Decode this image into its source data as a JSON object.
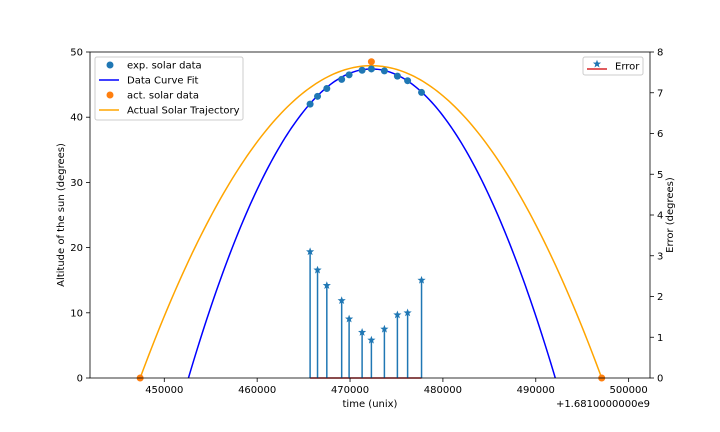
{
  "chart_data": {
    "type": "line",
    "xlabel": "time (unix)",
    "x_offset_label": "+1.6810000000e9",
    "x_ticks": [
      450000,
      460000,
      470000,
      480000,
      490000,
      500000
    ],
    "x_tick_labels": [
      "450000",
      "460000",
      "470000",
      "480000",
      "490000",
      "500000"
    ],
    "xlim": [
      442000,
      502300
    ],
    "left_axis": {
      "label": "Altitude of the sun (degrees)",
      "ylim": [
        0,
        50
      ],
      "ticks": [
        0,
        10,
        20,
        30,
        40,
        50
      ],
      "tick_labels": [
        "0",
        "10",
        "20",
        "30",
        "40",
        "50"
      ]
    },
    "right_axis": {
      "label": "Error (degrees)",
      "ylim": [
        0,
        8
      ],
      "ticks": [
        0,
        1,
        2,
        3,
        4,
        5,
        6,
        7,
        8
      ],
      "tick_labels": [
        "0",
        "1",
        "2",
        "3",
        "4",
        "5",
        "6",
        "7",
        "8"
      ]
    },
    "series": [
      {
        "name": "exp. solar data",
        "kind": "scatter",
        "axis": "left",
        "color": "#1f77b4",
        "x": [
          465700,
          466500,
          467500,
          469100,
          469900,
          471300,
          472300,
          473700,
          475100,
          476200,
          477700
        ],
        "y": [
          42.0,
          43.2,
          44.4,
          45.8,
          46.5,
          47.2,
          47.4,
          47.1,
          46.3,
          45.6,
          43.8
        ]
      },
      {
        "name": "Data Curve Fit",
        "kind": "line",
        "axis": "left",
        "color": "#0000ff",
        "peak_x": 472300,
        "peak_y": 47.4,
        "x": [
          452600,
          454000,
          456000,
          458000,
          460000,
          462000,
          464000,
          466000,
          468000,
          470000,
          472300,
          474000,
          476000,
          478000,
          480000,
          482000,
          484000,
          486000,
          488000,
          490000,
          492100
        ],
        "y": [
          0.0,
          7.0,
          15.5,
          23.0,
          29.5,
          35.0,
          39.5,
          43.0,
          45.4,
          46.9,
          47.4,
          47.2,
          46.0,
          43.7,
          40.2,
          35.5,
          29.6,
          22.5,
          14.3,
          6.0,
          0.0
        ]
      },
      {
        "name": "act. solar data",
        "kind": "scatter",
        "axis": "left",
        "color": "#ff7f0e",
        "x": [
          447400,
          472300,
          497100
        ],
        "y": [
          0.0,
          48.5,
          0.0
        ]
      },
      {
        "name": "Actual Solar Trajectory",
        "kind": "line",
        "axis": "left",
        "color": "#ffa500",
        "peak_x": 472300,
        "peak_y": 47.9,
        "x": [
          447400,
          450000,
          452500,
          455000,
          457500,
          460000,
          462500,
          465000,
          467500,
          470000,
          472300,
          474500,
          477000,
          479500,
          482000,
          484500,
          487000,
          489500,
          492000,
          494500,
          497100
        ],
        "y": [
          0.0,
          8.5,
          16.0,
          22.8,
          28.9,
          34.0,
          38.4,
          42.0,
          44.8,
          46.8,
          47.9,
          47.6,
          46.4,
          44.3,
          41.2,
          37.2,
          32.2,
          26.3,
          19.5,
          11.7,
          0.0
        ]
      },
      {
        "name": "Error",
        "kind": "stem",
        "axis": "right",
        "color": "#1f77b4",
        "baseline_color": "#d62728",
        "x": [
          465700,
          466500,
          467500,
          469100,
          469900,
          471300,
          472300,
          473700,
          475100,
          476200,
          477700
        ],
        "y": [
          3.1,
          2.65,
          2.27,
          1.9,
          1.45,
          1.12,
          0.93,
          1.2,
          1.55,
          1.6,
          2.4
        ]
      }
    ],
    "legend_left": [
      "exp. solar data",
      "Data Curve Fit",
      "act. solar data",
      "Actual Solar Trajectory"
    ],
    "legend_right": [
      "Error"
    ]
  }
}
